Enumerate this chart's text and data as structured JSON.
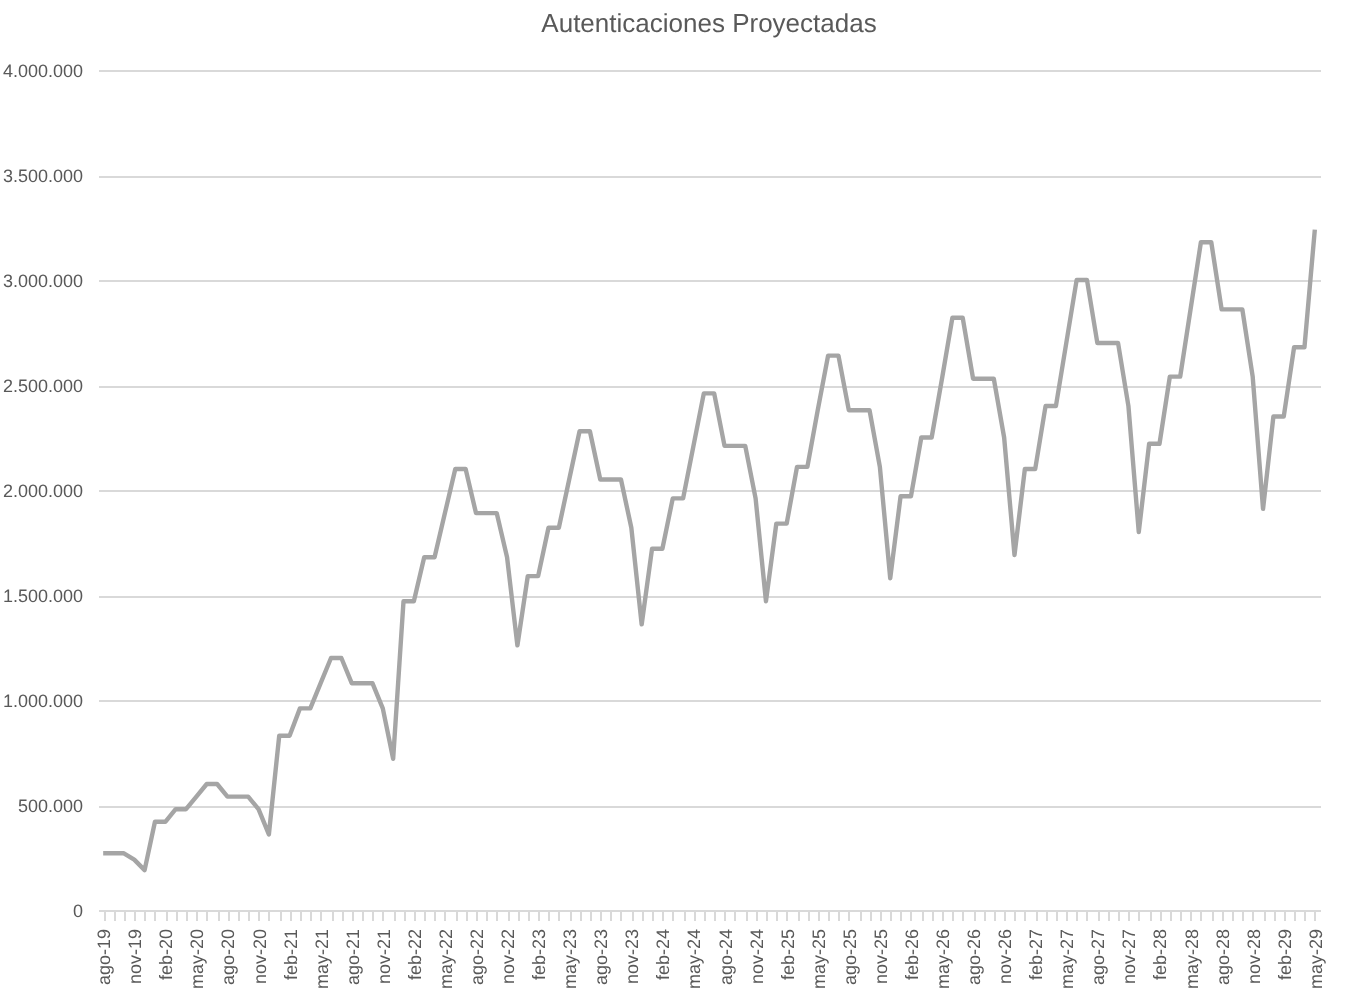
{
  "chart_data": {
    "type": "line",
    "title": "Autenticaciones Proyectadas",
    "categories": [
      "ago-19",
      null,
      null,
      "nov-19",
      null,
      null,
      "feb-20",
      null,
      null,
      "may-20",
      null,
      null,
      "ago-20",
      null,
      null,
      "nov-20",
      null,
      null,
      "feb-21",
      null,
      null,
      "may-21",
      null,
      null,
      "ago-21",
      null,
      null,
      "nov-21",
      null,
      null,
      "feb-22",
      null,
      null,
      "may-22",
      null,
      null,
      "ago-22",
      null,
      null,
      "nov-22",
      null,
      null,
      "feb-23",
      null,
      null,
      "may-23",
      null,
      null,
      "ago-23",
      null,
      null,
      "nov-23",
      null,
      null,
      "feb-24",
      null,
      null,
      "may-24",
      null,
      null,
      "ago-24",
      null,
      null,
      "nov-24",
      null,
      null,
      "feb-25",
      null,
      null,
      "may-25",
      null,
      null,
      "ago-25",
      null,
      null,
      "nov-25",
      null,
      null,
      "feb-26",
      null,
      null,
      "may-26",
      null,
      null,
      "ago-26",
      null,
      null,
      "nov-26",
      null,
      null,
      "feb-27",
      null,
      null,
      "may-27",
      null,
      null,
      "ago-27",
      null,
      null,
      "nov-27",
      null,
      null,
      "feb-28",
      null,
      null,
      "may-28",
      null,
      null,
      "ago-28",
      null,
      null,
      "nov-28",
      null,
      null,
      "feb-29",
      null,
      null,
      "may-29"
    ],
    "series": [
      {
        "color": "#a5a5a5",
        "values": [
          270000,
          270000,
          270000,
          240000,
          190000,
          420000,
          420000,
          480000,
          480000,
          540000,
          600000,
          600000,
          540000,
          540000,
          540000,
          480000,
          360000,
          830000,
          830000,
          960000,
          960000,
          1080000,
          1200000,
          1200000,
          1080000,
          1080000,
          1080000,
          960000,
          720000,
          1470000,
          1470000,
          1680000,
          1680000,
          1890000,
          2100000,
          2100000,
          1890000,
          1890000,
          1890000,
          1680000,
          1260000,
          1590000,
          1590000,
          1820000,
          1820000,
          2050000,
          2280000,
          2280000,
          2050000,
          2050000,
          2050000,
          1820000,
          1360000,
          1720000,
          1720000,
          1960000,
          1960000,
          2210000,
          2460000,
          2460000,
          2210000,
          2210000,
          2210000,
          1960000,
          1470000,
          1840000,
          1840000,
          2110000,
          2110000,
          2380000,
          2640000,
          2640000,
          2380000,
          2380000,
          2380000,
          2110000,
          1580000,
          1970000,
          1970000,
          2250000,
          2250000,
          2530000,
          2820000,
          2820000,
          2530000,
          2530000,
          2530000,
          2250000,
          1690000,
          2100000,
          2100000,
          2400000,
          2400000,
          2700000,
          3000000,
          3000000,
          2700000,
          2700000,
          2700000,
          2400000,
          1800000,
          2220000,
          2220000,
          2540000,
          2540000,
          2860000,
          3180000,
          3180000,
          2860000,
          2860000,
          2860000,
          2540000,
          1910000,
          2350000,
          2350000,
          2680000,
          2680000,
          3240000
        ]
      }
    ],
    "ylim": [
      0,
      4000000
    ],
    "yticks": [
      0,
      {
        "value": 500000,
        "label": "500.000"
      },
      {
        "value": 1000000,
        "label": "1.000.000"
      },
      {
        "value": 1500000,
        "label": "1.500.000"
      },
      {
        "value": 2000000,
        "label": "2.000.000"
      },
      {
        "value": 2500000,
        "label": "2.500.000"
      },
      {
        "value": 3000000,
        "label": "3.000.000"
      },
      {
        "value": 3500000,
        "label": "3.500.000"
      },
      {
        "value": 4000000,
        "label": "4.000.000"
      }
    ],
    "grid": "y",
    "marker": "none",
    "line_style": "solid"
  }
}
